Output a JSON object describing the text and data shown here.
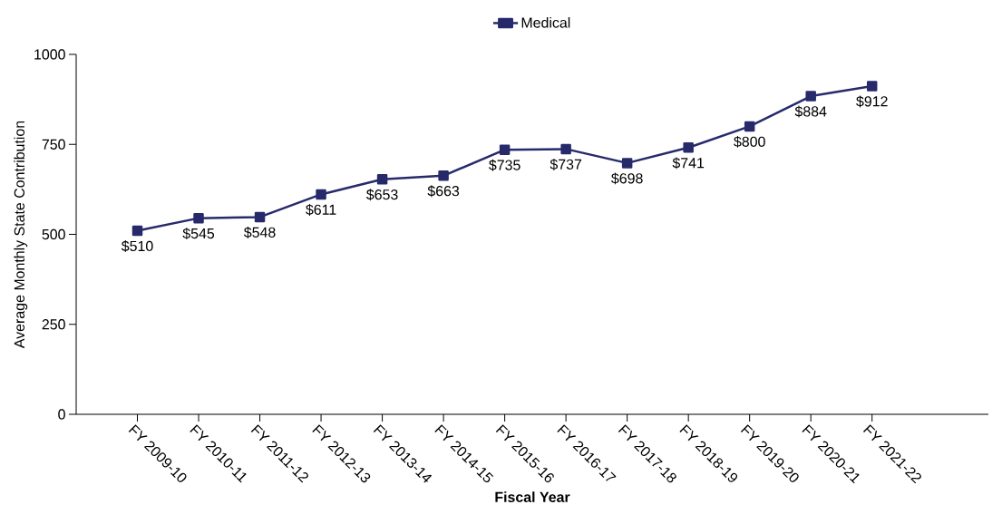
{
  "chart_data": {
    "type": "line",
    "xlabel": "Fiscal Year",
    "ylabel": "Average Monthly State Contribution",
    "categories": [
      "FY 2009-10",
      "FY 2010-11",
      "FY 2011-12",
      "FY 2012-13",
      "FY 2013-14",
      "FY 2014-15",
      "FY 2015-16",
      "FY 2016-17",
      "FY 2017-18",
      "FY 2018-19",
      "FY 2019-20",
      "FY 2020-21",
      "FY 2021-22"
    ],
    "series": [
      {
        "name": "Medical",
        "color": "#262a6b",
        "values": [
          510,
          545,
          548,
          611,
          653,
          663,
          735,
          737,
          698,
          741,
          800,
          884,
          912
        ],
        "value_labels": [
          "$510",
          "$545",
          "$548",
          "$611",
          "$653",
          "$663",
          "$735",
          "$737",
          "$698",
          "$741",
          "$800",
          "$884",
          "$912"
        ]
      }
    ],
    "ylim": [
      0,
      1000
    ],
    "yticks": [
      0,
      250,
      500,
      750,
      1000
    ],
    "grid": false,
    "legend": "top",
    "marker": "square",
    "line_style": "solid"
  }
}
